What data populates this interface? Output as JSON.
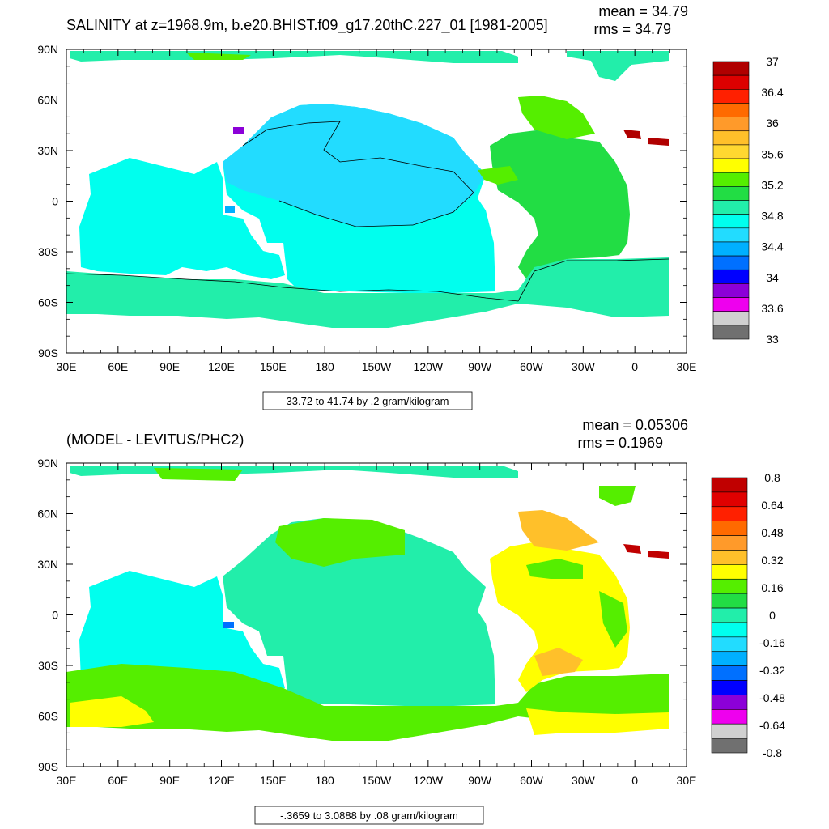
{
  "panels": [
    {
      "title": "SALINITY at z=1968.9m, b.e20.BHIST.f09_g17.20thC.227_01 [1981-2005]",
      "mean_text": "mean = 34.79",
      "rms_text": "rms = 34.79",
      "info_text": "33.72 to 41.74 by .2 gram/kilogram",
      "colorbar": {
        "labels": [
          "37",
          "36.4",
          "36",
          "35.6",
          "35.2",
          "34.8",
          "34.4",
          "34",
          "33.6",
          "33"
        ],
        "colors": [
          "#b00000",
          "#dd0000",
          "#ff2000",
          "#ff6a00",
          "#ff9a2a",
          "#ffc02a",
          "#ffd830",
          "#ffff00",
          "#55ee00",
          "#22dd44",
          "#22eeaa",
          "#00ffee",
          "#22dcff",
          "#00b0ff",
          "#0070ff",
          "#0000ff",
          "#8c00d8",
          "#ee00ee",
          "#d0d0d0",
          "#707070"
        ]
      }
    },
    {
      "title": "(MODEL - LEVITUS/PHC2)",
      "mean_text": "mean = 0.05306",
      "rms_text": "rms = 0.1969",
      "info_text": "-.3659 to 3.0888 by .08 gram/kilogram",
      "colorbar": {
        "labels": [
          "0.8",
          "0.64",
          "0.48",
          "0.32",
          "0.16",
          "0",
          "-0.16",
          "-0.32",
          "-0.48",
          "-0.64",
          "-0.8"
        ],
        "colors": [
          "#c00000",
          "#e00000",
          "#ff2000",
          "#ff6a00",
          "#ff9a2a",
          "#ffc02a",
          "#ffff00",
          "#55ee00",
          "#22dd44",
          "#22eeaa",
          "#00ffee",
          "#22dcff",
          "#00b0ff",
          "#0070ff",
          "#0000ff",
          "#8c00d8",
          "#ee00ee",
          "#d0d0d0",
          "#707070"
        ]
      }
    }
  ],
  "axes": {
    "lon_labels": [
      "30E",
      "60E",
      "90E",
      "120E",
      "150E",
      "180",
      "150W",
      "120W",
      "90W",
      "60W",
      "30W",
      "0",
      "30E"
    ],
    "lat_labels": [
      "90N",
      "60N",
      "30N",
      "0",
      "30S",
      "60S",
      "90S"
    ]
  },
  "map_colors": {
    "top_ocean": "#00ffee",
    "top_pacific_core": "#22dcff",
    "top_southern": "#22eeaa",
    "top_atlantic": "#22dd44",
    "top_atlantic_north": "#55ee00",
    "diff_pacific": "#22eeaa",
    "diff_southern": "#55ee00",
    "diff_atlantic": "#ffff00",
    "diff_indian": "#00ffee"
  }
}
